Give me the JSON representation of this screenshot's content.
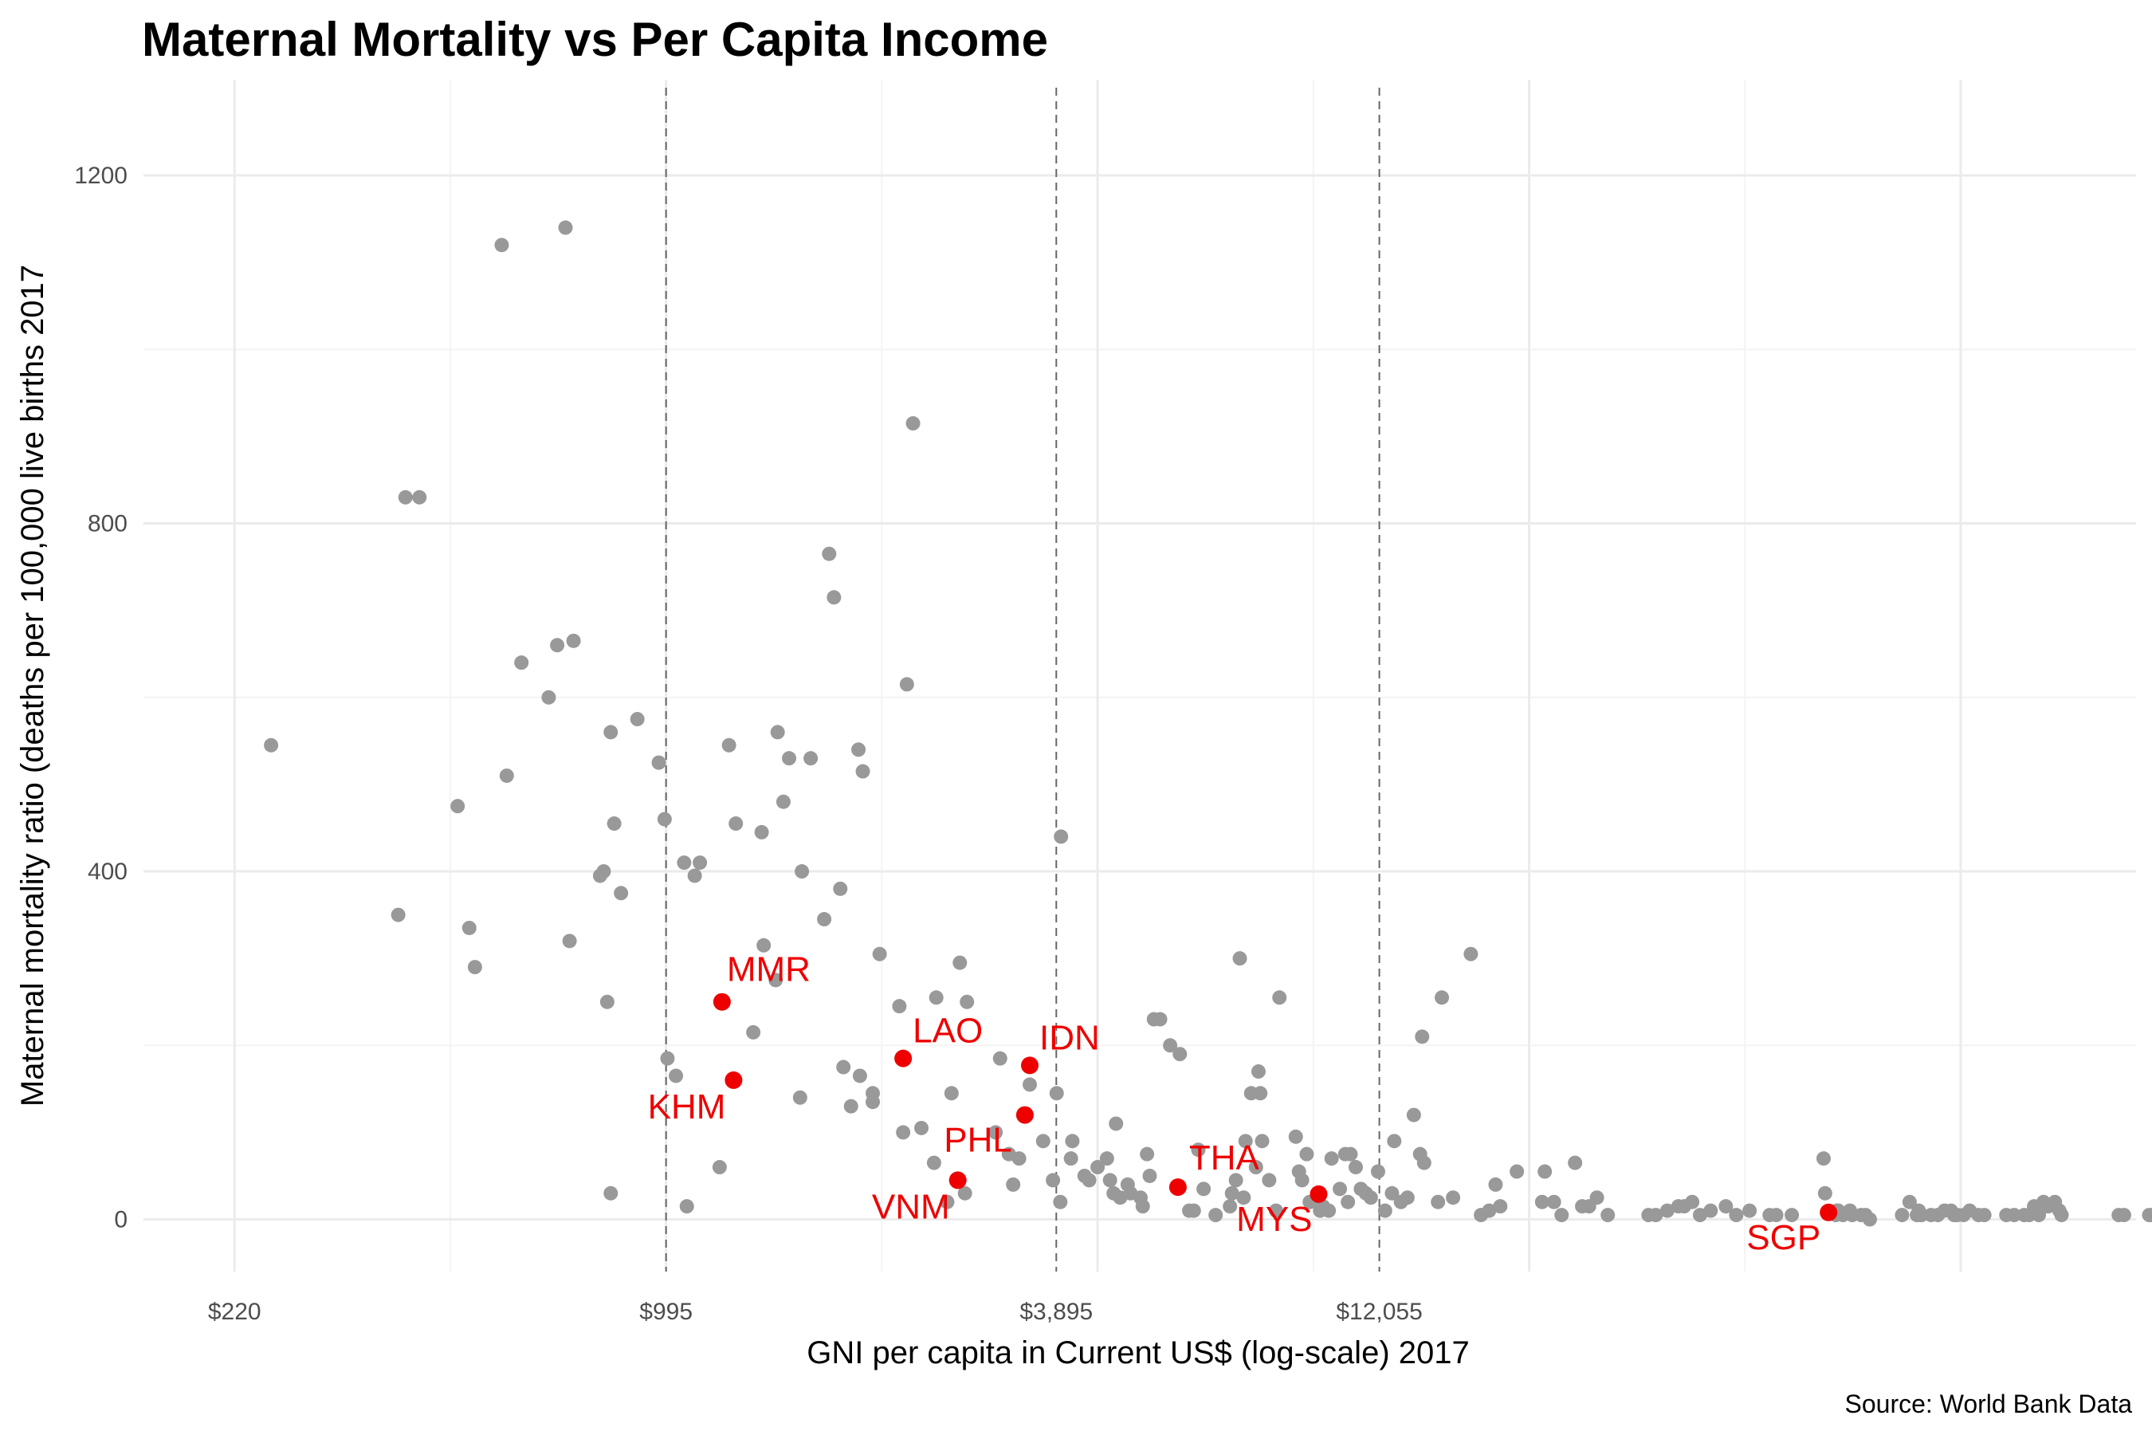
{
  "chart_data": {
    "type": "scatter",
    "title": "Maternal Mortality vs Per Capita Income",
    "xlabel": "GNI per capita in Current US$ (log-scale) 2017",
    "ylabel": "Maternal mortality ratio (deaths per 100,000 live births 2017",
    "caption": "Source: World Bank Data",
    "x_scale": "log",
    "xlim": [
      160,
      170000
    ],
    "ylim": [
      -60,
      1310
    ],
    "x_ticks": [
      {
        "value": 220,
        "label": "$220"
      },
      {
        "value": 995,
        "label": "$995"
      },
      {
        "value": 3895,
        "label": "$3,895"
      },
      {
        "value": 12055,
        "label": "$12,055"
      }
    ],
    "y_ticks": [
      {
        "value": 0,
        "label": "0"
      },
      {
        "value": 400,
        "label": "400"
      },
      {
        "value": 800,
        "label": "800"
      },
      {
        "value": 1200,
        "label": "1200"
      }
    ],
    "vlines": [
      995,
      3895,
      12055
    ],
    "grid": true,
    "colors": {
      "background": "#ffffff",
      "grid_major": "#ebebeb",
      "grid_minor": "#f4f4f4",
      "point": "#999999",
      "highlight": "#ee0000",
      "vline": "#666666"
    },
    "series": [
      {
        "points": [
          [
            250,
            545
          ],
          [
            390,
            350
          ],
          [
            400,
            830
          ],
          [
            420,
            830
          ],
          [
            480,
            475
          ],
          [
            500,
            335
          ],
          [
            510,
            290
          ],
          [
            560,
            1120
          ],
          [
            570,
            510
          ],
          [
            600,
            640
          ],
          [
            660,
            600
          ],
          [
            680,
            660
          ],
          [
            700,
            1140
          ],
          [
            710,
            320
          ],
          [
            720,
            665
          ],
          [
            790,
            395
          ],
          [
            800,
            400
          ],
          [
            810,
            250
          ],
          [
            820,
            560
          ],
          [
            820,
            30
          ],
          [
            830,
            455
          ],
          [
            850,
            375
          ],
          [
            900,
            575
          ],
          [
            970,
            525
          ],
          [
            990,
            460
          ],
          [
            1000,
            185
          ],
          [
            1030,
            165
          ],
          [
            1060,
            410
          ],
          [
            1070,
            15
          ],
          [
            1100,
            395
          ],
          [
            1120,
            410
          ],
          [
            1200,
            60
          ],
          [
            1240,
            545
          ],
          [
            1270,
            455
          ],
          [
            1350,
            215
          ],
          [
            1390,
            445
          ],
          [
            1400,
            315
          ],
          [
            1460,
            275
          ],
          [
            1470,
            560
          ],
          [
            1500,
            480
          ],
          [
            1530,
            530
          ],
          [
            1590,
            140
          ],
          [
            1600,
            400
          ],
          [
            1650,
            530
          ],
          [
            1730,
            345
          ],
          [
            1760,
            765
          ],
          [
            1790,
            715
          ],
          [
            1830,
            380
          ],
          [
            1850,
            175
          ],
          [
            1900,
            130
          ],
          [
            1950,
            540
          ],
          [
            1960,
            165
          ],
          [
            1980,
            515
          ],
          [
            2050,
            145
          ],
          [
            2050,
            135
          ],
          [
            2100,
            305
          ],
          [
            2250,
            245
          ],
          [
            2280,
            100
          ],
          [
            2310,
            615
          ],
          [
            2360,
            915
          ],
          [
            2430,
            105
          ],
          [
            2540,
            65
          ],
          [
            2560,
            255
          ],
          [
            2660,
            20
          ],
          [
            2700,
            145
          ],
          [
            2780,
            295
          ],
          [
            2830,
            30
          ],
          [
            2850,
            250
          ],
          [
            3150,
            100
          ],
          [
            3200,
            185
          ],
          [
            3300,
            75
          ],
          [
            3350,
            40
          ],
          [
            3420,
            70
          ],
          [
            3550,
            155
          ],
          [
            3720,
            90
          ],
          [
            3850,
            45
          ],
          [
            3900,
            145
          ],
          [
            3950,
            20
          ],
          [
            3960,
            440
          ],
          [
            4100,
            70
          ],
          [
            4120,
            90
          ],
          [
            4300,
            50
          ],
          [
            4370,
            45
          ],
          [
            4500,
            60
          ],
          [
            4650,
            70
          ],
          [
            4700,
            45
          ],
          [
            4760,
            30
          ],
          [
            4800,
            110
          ],
          [
            4870,
            25
          ],
          [
            5000,
            40
          ],
          [
            5050,
            30
          ],
          [
            5230,
            25
          ],
          [
            5270,
            15
          ],
          [
            5350,
            75
          ],
          [
            5400,
            50
          ],
          [
            5480,
            230
          ],
          [
            5600,
            230
          ],
          [
            5800,
            200
          ],
          [
            6000,
            190
          ],
          [
            6200,
            10
          ],
          [
            6300,
            10
          ],
          [
            6400,
            80
          ],
          [
            6520,
            35
          ],
          [
            6800,
            5
          ],
          [
            7150,
            15
          ],
          [
            7200,
            30
          ],
          [
            7300,
            45
          ],
          [
            7400,
            300
          ],
          [
            7500,
            25
          ],
          [
            7550,
            90
          ],
          [
            7700,
            145
          ],
          [
            7830,
            60
          ],
          [
            7900,
            170
          ],
          [
            7950,
            145
          ],
          [
            8000,
            90
          ],
          [
            8200,
            45
          ],
          [
            8400,
            10
          ],
          [
            8500,
            255
          ],
          [
            9000,
            95
          ],
          [
            9100,
            55
          ],
          [
            9200,
            45
          ],
          [
            9350,
            75
          ],
          [
            9450,
            20
          ],
          [
            9800,
            10
          ],
          [
            9900,
            15
          ],
          [
            10100,
            10
          ],
          [
            10200,
            70
          ],
          [
            10500,
            35
          ],
          [
            10700,
            75
          ],
          [
            10800,
            20
          ],
          [
            10900,
            75
          ],
          [
            11100,
            60
          ],
          [
            11300,
            35
          ],
          [
            11500,
            30
          ],
          [
            11700,
            25
          ],
          [
            12000,
            55
          ],
          [
            12300,
            10
          ],
          [
            12600,
            30
          ],
          [
            12700,
            90
          ],
          [
            13000,
            20
          ],
          [
            13300,
            25
          ],
          [
            13600,
            120
          ],
          [
            13900,
            75
          ],
          [
            14000,
            210
          ],
          [
            14100,
            65
          ],
          [
            14800,
            20
          ],
          [
            15000,
            255
          ],
          [
            15600,
            25
          ],
          [
            16600,
            305
          ],
          [
            17200,
            5
          ],
          [
            17700,
            10
          ],
          [
            18100,
            40
          ],
          [
            18400,
            15
          ],
          [
            19500,
            55
          ],
          [
            21300,
            20
          ],
          [
            21500,
            55
          ],
          [
            22200,
            20
          ],
          [
            22800,
            5
          ],
          [
            23900,
            65
          ],
          [
            24500,
            15
          ],
          [
            25100,
            15
          ],
          [
            25800,
            25
          ],
          [
            26800,
            5
          ],
          [
            30900,
            5
          ],
          [
            31700,
            5
          ],
          [
            33000,
            10
          ],
          [
            34300,
            15
          ],
          [
            35000,
            15
          ],
          [
            36000,
            20
          ],
          [
            37000,
            5
          ],
          [
            38400,
            10
          ],
          [
            40500,
            15
          ],
          [
            42000,
            5
          ],
          [
            44000,
            10
          ],
          [
            47200,
            5
          ],
          [
            48300,
            5
          ],
          [
            51000,
            5
          ],
          [
            57000,
            70
          ],
          [
            57300,
            30
          ],
          [
            59500,
            5
          ],
          [
            59700,
            10
          ],
          [
            60000,
            10
          ],
          [
            61000,
            5
          ],
          [
            62500,
            10
          ],
          [
            63000,
            5
          ],
          [
            65000,
            5
          ],
          [
            66000,
            5
          ],
          [
            67000,
            0
          ],
          [
            75000,
            5
          ],
          [
            77000,
            20
          ],
          [
            79000,
            5
          ],
          [
            79500,
            10
          ],
          [
            80000,
            5
          ],
          [
            80300,
            5
          ],
          [
            83000,
            5
          ],
          [
            85000,
            5
          ],
          [
            87000,
            10
          ],
          [
            89000,
            10
          ],
          [
            90000,
            5
          ],
          [
            91000,
            5
          ],
          [
            93000,
            5
          ],
          [
            95000,
            10
          ],
          [
            98000,
            5
          ],
          [
            100000,
            5
          ],
          [
            108000,
            5
          ],
          [
            111000,
            5
          ],
          [
            115000,
            5
          ],
          [
            117000,
            5
          ],
          [
            119000,
            15
          ],
          [
            121000,
            5
          ],
          [
            123000,
            20
          ],
          [
            125000,
            15
          ],
          [
            128000,
            20
          ],
          [
            130000,
            10
          ],
          [
            131000,
            5
          ],
          [
            160000,
            5
          ],
          [
            163000,
            5
          ],
          [
            178000,
            5
          ],
          [
            180000,
            5
          ]
        ]
      },
      {
        "highlight": true,
        "points": [
          {
            "x": 1210,
            "y": 250,
            "label": "MMR"
          },
          {
            "x": 1260,
            "y": 160,
            "label": "KHM"
          },
          {
            "x": 2280,
            "y": 185,
            "label": "LAO"
          },
          {
            "x": 2760,
            "y": 45,
            "label": "VNM"
          },
          {
            "x": 3490,
            "y": 120,
            "label": "PHL"
          },
          {
            "x": 3550,
            "y": 177,
            "label": "IDN"
          },
          {
            "x": 5960,
            "y": 37,
            "label": "THA"
          },
          {
            "x": 9750,
            "y": 29,
            "label": "MYS"
          },
          {
            "x": 58000,
            "y": 8,
            "label": "SGP"
          }
        ]
      }
    ]
  }
}
